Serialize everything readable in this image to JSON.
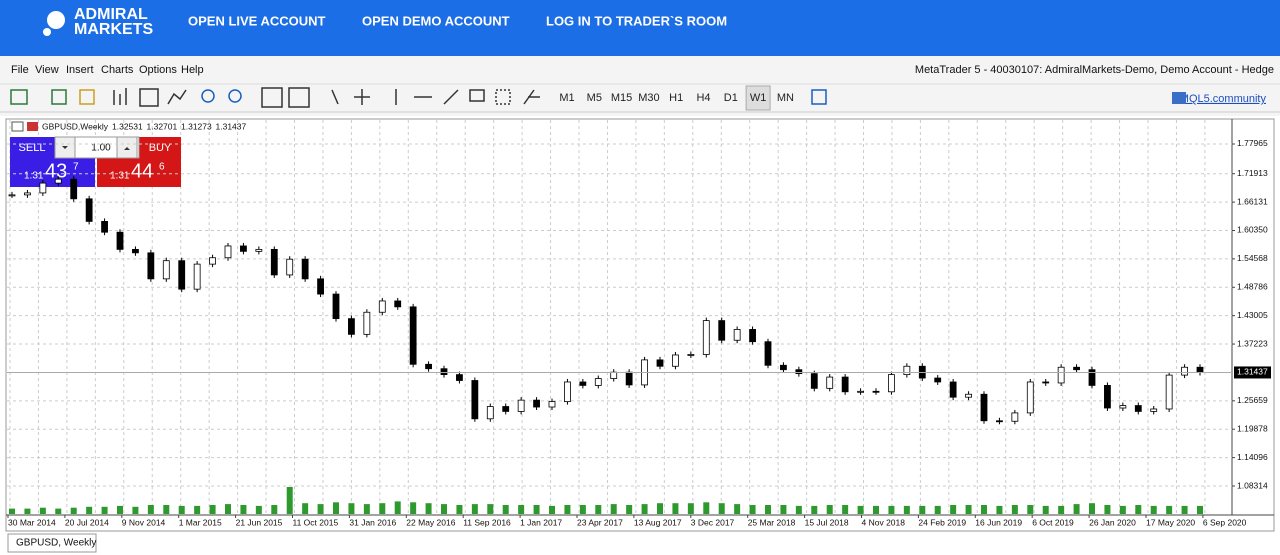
{
  "header": {
    "logo": [
      "ADMIRAL",
      "MARKETS"
    ],
    "nav": [
      "OPEN LIVE ACCOUNT",
      "OPEN DEMO ACCOUNT",
      "LOG IN TO TRADER`S ROOM"
    ]
  },
  "menu": [
    "File",
    "View",
    "Insert",
    "Charts",
    "Options",
    "Help"
  ],
  "terminal_title": "MetaTrader 5 - 40030107: AdmiralMarkets-Demo, Demo Account - Hedge",
  "timeframes": [
    "M1",
    "M5",
    "M15",
    "M30",
    "H1",
    "H4",
    "D1",
    "W1",
    "MN"
  ],
  "active_timeframe_index": 7,
  "community_link": "MQL5.community",
  "chart": {
    "symbol_title": "GBPUSD,Weekly",
    "quote": [
      1.32531,
      1.32701,
      1.31273,
      1.31437
    ],
    "trade_panel": {
      "sell": "SELL",
      "buy": "BUY",
      "lot": "1.00",
      "sell_price": [
        "1.31",
        "43",
        "7"
      ],
      "buy_price": [
        "1.31",
        "44",
        "6"
      ]
    },
    "ylim": [
      1.0241,
      1.8285
    ],
    "yticks": [
      1.77965,
      1.71913,
      1.66131,
      {
        "value": 1.6035,
        "label": "1.60350"
      },
      1.54568,
      1.48786,
      1.43005,
      1.37223,
      1.25659,
      1.19878,
      1.14096,
      1.08314
    ],
    "last_price": 1.31437,
    "x_labels": [
      "30 Mar 2014",
      "20 Jul 2014",
      "9 Nov 2014",
      "1 Mar 2015",
      "21 Jun 2015",
      "11 Oct 2015",
      "31 Jan 2016",
      "22 May 2016",
      "11 Sep 2016",
      "1 Jan 2017",
      "23 Apr 2017",
      "13 Aug 2017",
      "3 Dec 2017",
      "25 Mar 2018",
      "15 Jul 2018",
      "4 Nov 2018",
      "24 Feb 2019",
      "16 Jun 2019",
      "6 Oct 2019",
      "26 Jan 2020",
      "17 May 2020",
      "6 Sep 2020"
    ],
    "open": 1.676,
    "closes": [
      1.676,
      1.68,
      1.7,
      1.708,
      1.668,
      1.622,
      1.6,
      1.565,
      1.558,
      1.505,
      1.542,
      1.484,
      1.535,
      1.548,
      1.572,
      1.561,
      1.565,
      1.513,
      1.545,
      1.505,
      1.474,
      1.424,
      1.392,
      1.437,
      1.46,
      1.448,
      1.331,
      1.322,
      1.31,
      1.298,
      1.22,
      1.245,
      1.235,
      1.258,
      1.244,
      1.255,
      1.295,
      1.288,
      1.302,
      1.315,
      1.289,
      1.34,
      1.327,
      1.35,
      1.351,
      1.42,
      1.38,
      1.402,
      1.377,
      1.329,
      1.32,
      1.312,
      1.282,
      1.305,
      1.275,
      1.276,
      1.275,
      1.31,
      1.327,
      1.303,
      1.295,
      1.264,
      1.27,
      1.216,
      1.215,
      1.232,
      1.295,
      1.293,
      1.325,
      1.32,
      1.288,
      1.242,
      1.247,
      1.235,
      1.24,
      1.309,
      1.325,
      1.31437
    ],
    "volumes": [
      6,
      6,
      7,
      6,
      7,
      8,
      8,
      9,
      8,
      10,
      10,
      9,
      9,
      10,
      11,
      10,
      9,
      10,
      30,
      12,
      11,
      13,
      12,
      11,
      12,
      14,
      13,
      12,
      11,
      10,
      11,
      11,
      10,
      10,
      10,
      9,
      10,
      10,
      10,
      11,
      10,
      11,
      12,
      12,
      12,
      13,
      12,
      11,
      10,
      10,
      10,
      9,
      9,
      10,
      10,
      9,
      9,
      9,
      9,
      9,
      9,
      10,
      10,
      10,
      9,
      10,
      10,
      9,
      9,
      11,
      12,
      10,
      9,
      10,
      9,
      9,
      9,
      9
    ]
  },
  "tab": "GBPUSD, Weekly"
}
